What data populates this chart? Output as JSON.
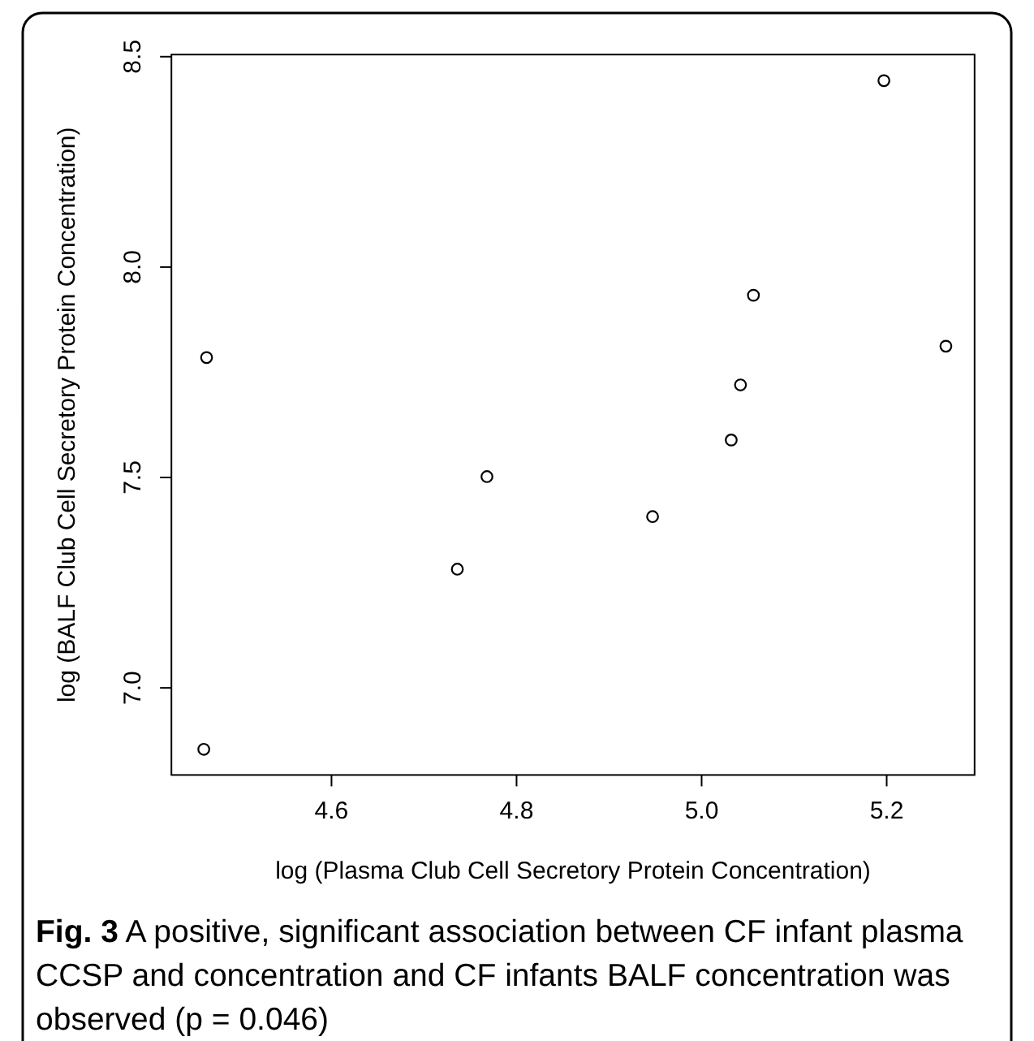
{
  "chart_data": {
    "type": "scatter",
    "xlabel": "log (Plasma Club Cell Secretory Protein Concentration)",
    "ylabel": "log (BALF Club Cell Secretory Protein Concentration)",
    "annotations": [
      "Fig. 3 A positive, significant association between CF infant plasma CCSP and concentration and CF infants BALF concentration was observed (p = 0.046)"
    ],
    "x": [
      4.465,
      4.768,
      4.947,
      5.032,
      5.042,
      5.056,
      5.197,
      5.264,
      4.736,
      4.462
    ],
    "series": [
      {
        "color": "#000000",
        "values": [
          7.785,
          7.502,
          7.407,
          7.589,
          7.72,
          7.933,
          8.443,
          7.812,
          7.282,
          6.854
        ]
      }
    ],
    "xlim": [
      4.427,
      5.295
    ],
    "ylim": [
      6.793,
      8.505
    ],
    "xticks": [
      4.6,
      4.8,
      {
        "value": 5,
        "label": "5.0"
      },
      5.2
    ],
    "yticks": [
      {
        "value": 7,
        "label": "7.0"
      },
      7.5,
      {
        "value": 8,
        "label": "8.0"
      },
      8.5
    ],
    "marker": "circle"
  }
}
